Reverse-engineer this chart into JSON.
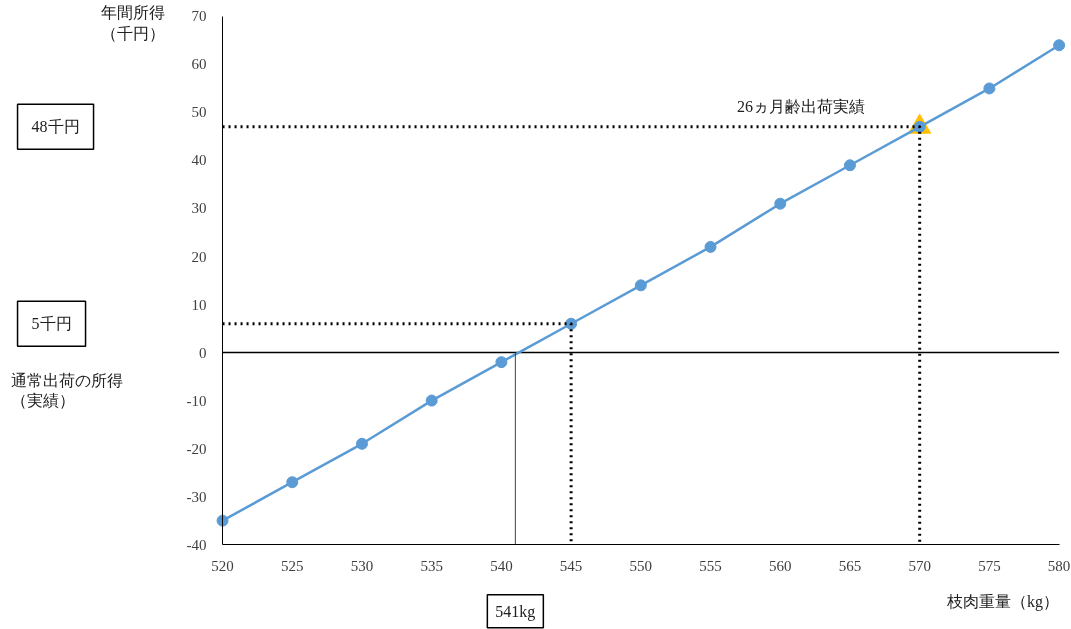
{
  "chart_data": {
    "type": "line",
    "xlabel": "枝肉重量（kg）",
    "ylabel": "年間所得（千円）",
    "x": [
      520,
      525,
      530,
      535,
      540,
      545,
      550,
      555,
      560,
      565,
      570,
      575,
      580
    ],
    "series": [
      {
        "color": "#5b9bd5",
        "marker": "circle",
        "values": [
          -35,
          -27,
          -19,
          -10,
          -2,
          6,
          14,
          22,
          31,
          39,
          47,
          55,
          64
        ]
      },
      {
        "type": "scatter",
        "color": "#ffc000",
        "marker": "triangle",
        "x": [
          570
        ],
        "values": [
          47
        ]
      },
      {
        "type": "line",
        "color": "#000000",
        "marker": "none",
        "line_style": "dotted",
        "x": [
          520,
          570,
          570
        ],
        "values": [
          47,
          47,
          -40
        ]
      },
      {
        "type": "line",
        "color": "#000000",
        "marker": "none",
        "line_style": "dotted",
        "x": [
          520,
          545,
          545
        ],
        "values": [
          6,
          6,
          -40
        ]
      },
      {
        "type": "line",
        "color": "#404040",
        "marker": "none",
        "line_style": "solid",
        "x": [
          541,
          541
        ],
        "values": [
          0,
          -40
        ]
      }
    ],
    "xlim": [
      520,
      580
    ],
    "xticks": [
      520,
      525,
      530,
      535,
      540,
      545,
      550,
      555,
      560,
      565,
      570,
      575,
      580
    ],
    "ylim": [
      -40,
      70
    ],
    "yticks": [
      -40,
      -30,
      -20,
      -10,
      0,
      10,
      20,
      30,
      40,
      50,
      60,
      70
    ],
    "line_style": "solid",
    "ref_lines": [
      {
        "axis": "y",
        "value": 0,
        "color": "#000000",
        "line_style": "solid"
      }
    ],
    "annotations": [
      "26ヵ月齢出荷実績",
      "48千円",
      "5千円",
      "通常出荷の所得（実績）",
      "541kg"
    ]
  }
}
